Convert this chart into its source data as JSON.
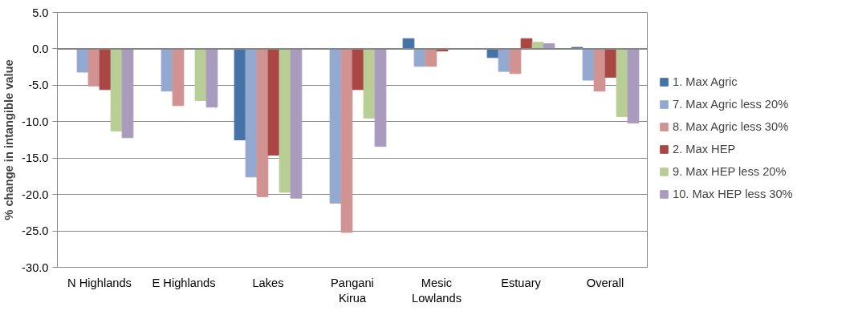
{
  "chart_data": {
    "type": "bar",
    "ylabel": "% change in intangible value",
    "categories": [
      "N Highlands",
      "E Highlands",
      "Lakes",
      "Pangani\nKirua",
      "Mesic\nLowlands",
      "Estuary",
      "Overall"
    ],
    "series": [
      {
        "name": "1. Max Agric",
        "color": "#4572a7",
        "values": [
          0,
          0,
          -12.5,
          0,
          1.4,
          -1.2,
          0.2
        ]
      },
      {
        "name": "7. Max Agric less 20%",
        "color": "#93a9cf",
        "values": [
          -3.2,
          -5.8,
          -17.6,
          -21.2,
          -2.4,
          -3.1,
          -4.3
        ]
      },
      {
        "name": "8. Max Agric less 30%",
        "color": "#d09392",
        "values": [
          -5.1,
          -7.8,
          -20.3,
          -25.2,
          -2.4,
          -3.4,
          -5.8
        ]
      },
      {
        "name": "2. Max HEP",
        "color": "#aa4643",
        "values": [
          -5.6,
          0,
          -14.6,
          -5.6,
          -0.3,
          1.4,
          -3.9
        ]
      },
      {
        "name": "9. Max HEP less 20%",
        "color": "#b9cd96",
        "values": [
          -11.3,
          -7.1,
          -19.7,
          -9.5,
          0,
          0.9,
          -9.3
        ]
      },
      {
        "name": "10. Max HEP less 30%",
        "color": "#a99bbd",
        "values": [
          -12.2,
          -8.0,
          -20.5,
          -13.4,
          0,
          0.7,
          -10.2
        ]
      }
    ],
    "ylim": [
      -30,
      5
    ],
    "yticks": [
      {
        "value": -30,
        "label": "-30.0"
      },
      {
        "value": -25,
        "label": "-25.0"
      },
      {
        "value": -20,
        "label": "-20.0"
      },
      {
        "value": -15,
        "label": "-15.0"
      },
      {
        "value": -10,
        "label": "-10.0"
      },
      {
        "value": -5,
        "label": "-5.0"
      },
      {
        "value": 0,
        "label": "0.0"
      },
      {
        "value": 5,
        "label": "5.0"
      }
    ],
    "grid": "y",
    "legend": "right"
  }
}
